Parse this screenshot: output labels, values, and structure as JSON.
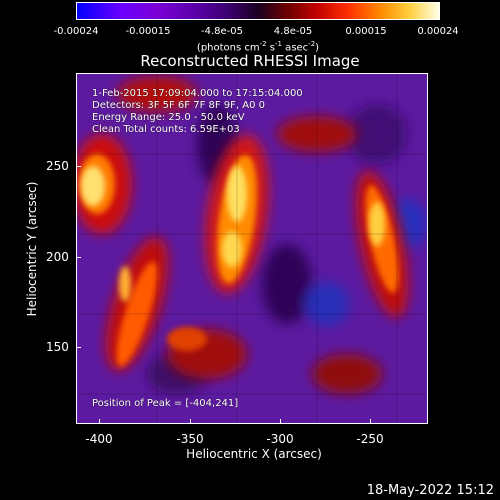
{
  "colorbar": {
    "ticks": [
      "-0.00024",
      "-0.00015",
      "-4.8e-05",
      "4.8e-05",
      "0.00015",
      "0.00024"
    ],
    "unit_label": "(photons cm",
    "unit_exp1": "-2",
    "unit_mid": " s",
    "unit_exp2": "-1",
    "unit_tail": " asec",
    "unit_exp3": "-2",
    "unit_close": ")"
  },
  "title": "Reconstructed RHESSI Image",
  "info": {
    "time_range": "1-Feb-2015 17:09:04.000 to 17:15:04.000",
    "detectors": "Detectors: 3F 5F 6F 7F 8F 9F, A0 0",
    "energy_range": "Energy Range: 25.0 - 50.0 keV",
    "algorithm": "Clean     Total counts: 6.59E+03",
    "peak": "Position of Peak = [-404,241]"
  },
  "axes": {
    "xlabel": "Heliocentric X (arcsec)",
    "ylabel": "Heliocentric Y (arcsec)",
    "xticks": [
      "-400",
      "-350",
      "-300",
      "-250"
    ],
    "yticks": [
      "250",
      "200",
      "150"
    ]
  },
  "timestamp": "18-May-2022 15:12",
  "colors": {
    "background": "#000000",
    "colormap": [
      "#0000ff",
      "#6a00ff",
      "#3a006e",
      "#1a0020",
      "#c00000",
      "#ff8c00",
      "#ffffe6"
    ]
  }
}
